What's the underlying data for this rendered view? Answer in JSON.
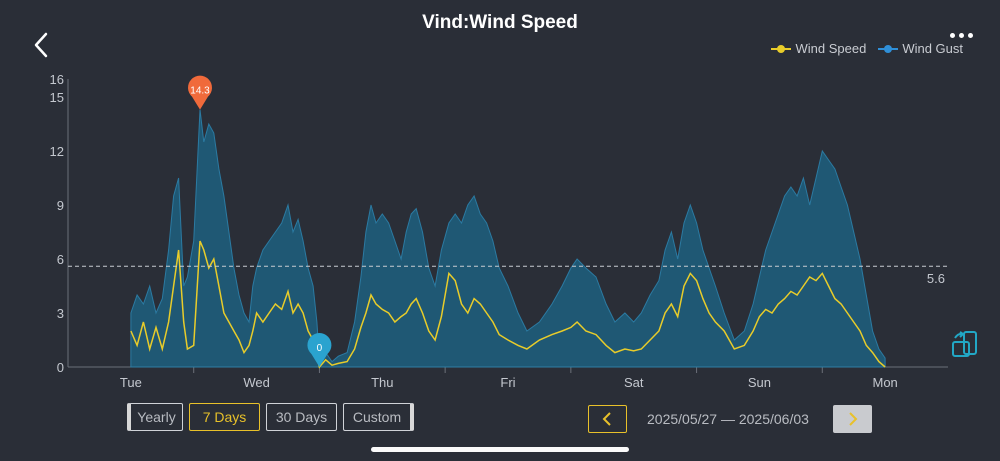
{
  "header": {
    "title": "Vind:Wind Speed"
  },
  "legend": [
    {
      "name": "Wind Speed",
      "color": "#e8cc2a"
    },
    {
      "name": "Wind Gust",
      "color": "#2f8fd8"
    }
  ],
  "icons": {
    "back": "chevron-left-icon",
    "more": "more-dots-icon",
    "rotate": "rotate-screen-icon"
  },
  "chart_data": {
    "type": "area",
    "x_labels": [
      "Tue",
      "Wed",
      "Thu",
      "Fri",
      "Sat",
      "Sun",
      "Mon"
    ],
    "y_ticks": [
      0,
      3,
      6,
      9,
      12,
      15,
      16
    ],
    "ylim": [
      0,
      16
    ],
    "reference_line": {
      "value": 5.6,
      "label": "5.6"
    },
    "markers": [
      {
        "type": "max",
        "label": "14.3",
        "value": 14.3,
        "x": 0.55,
        "color": "#f06a3b"
      },
      {
        "type": "min",
        "label": "0",
        "value": 0,
        "x": 1.5,
        "color": "#2aa3cf"
      }
    ],
    "series": [
      {
        "name": "Wind Gust",
        "color": "#2f8fd8",
        "points": [
          [
            0.0,
            3.0
          ],
          [
            0.05,
            4.0
          ],
          [
            0.1,
            3.5
          ],
          [
            0.15,
            4.5
          ],
          [
            0.2,
            3.0
          ],
          [
            0.25,
            3.8
          ],
          [
            0.3,
            6.5
          ],
          [
            0.34,
            9.5
          ],
          [
            0.38,
            10.5
          ],
          [
            0.42,
            4.5
          ],
          [
            0.45,
            5.0
          ],
          [
            0.5,
            7.0
          ],
          [
            0.55,
            14.3
          ],
          [
            0.58,
            12.5
          ],
          [
            0.62,
            13.5
          ],
          [
            0.66,
            13.0
          ],
          [
            0.7,
            11.0
          ],
          [
            0.74,
            9.5
          ],
          [
            0.78,
            7.5
          ],
          [
            0.82,
            5.5
          ],
          [
            0.86,
            4.0
          ],
          [
            0.9,
            3.0
          ],
          [
            0.94,
            2.5
          ],
          [
            0.97,
            4.5
          ],
          [
            1.0,
            5.5
          ],
          [
            1.05,
            6.5
          ],
          [
            1.1,
            7.0
          ],
          [
            1.15,
            7.5
          ],
          [
            1.2,
            8.0
          ],
          [
            1.25,
            9.0
          ],
          [
            1.29,
            7.5
          ],
          [
            1.33,
            8.2
          ],
          [
            1.37,
            7.0
          ],
          [
            1.41,
            5.5
          ],
          [
            1.45,
            4.5
          ],
          [
            1.48,
            2.5
          ],
          [
            1.5,
            0.4
          ],
          [
            1.55,
            0.8
          ],
          [
            1.6,
            0.3
          ],
          [
            1.65,
            0.6
          ],
          [
            1.72,
            0.8
          ],
          [
            1.78,
            2.5
          ],
          [
            1.83,
            5.0
          ],
          [
            1.87,
            7.5
          ],
          [
            1.91,
            9.0
          ],
          [
            1.95,
            8.0
          ],
          [
            2.0,
            8.5
          ],
          [
            2.05,
            8.0
          ],
          [
            2.1,
            7.0
          ],
          [
            2.15,
            6.0
          ],
          [
            2.19,
            7.5
          ],
          [
            2.23,
            8.5
          ],
          [
            2.27,
            8.8
          ],
          [
            2.32,
            7.5
          ],
          [
            2.37,
            5.5
          ],
          [
            2.42,
            4.5
          ],
          [
            2.47,
            6.5
          ],
          [
            2.53,
            8.0
          ],
          [
            2.58,
            8.5
          ],
          [
            2.63,
            8.0
          ],
          [
            2.68,
            9.0
          ],
          [
            2.73,
            9.5
          ],
          [
            2.78,
            8.5
          ],
          [
            2.83,
            8.0
          ],
          [
            2.88,
            7.0
          ],
          [
            2.93,
            5.5
          ],
          [
            3.0,
            4.5
          ],
          [
            3.08,
            3.0
          ],
          [
            3.15,
            2.0
          ],
          [
            3.25,
            2.5
          ],
          [
            3.35,
            3.5
          ],
          [
            3.43,
            4.5
          ],
          [
            3.5,
            5.5
          ],
          [
            3.55,
            6.0
          ],
          [
            3.62,
            5.5
          ],
          [
            3.7,
            5.0
          ],
          [
            3.78,
            3.5
          ],
          [
            3.85,
            2.5
          ],
          [
            3.93,
            3.0
          ],
          [
            4.0,
            2.5
          ],
          [
            4.06,
            3.0
          ],
          [
            4.13,
            4.0
          ],
          [
            4.2,
            4.8
          ],
          [
            4.25,
            6.5
          ],
          [
            4.3,
            7.5
          ],
          [
            4.35,
            6.0
          ],
          [
            4.4,
            8.0
          ],
          [
            4.45,
            9.0
          ],
          [
            4.5,
            8.0
          ],
          [
            4.55,
            6.5
          ],
          [
            4.6,
            5.5
          ],
          [
            4.65,
            4.5
          ],
          [
            4.72,
            3.0
          ],
          [
            4.8,
            1.5
          ],
          [
            4.88,
            2.0
          ],
          [
            4.95,
            3.5
          ],
          [
            5.0,
            5.0
          ],
          [
            5.05,
            6.5
          ],
          [
            5.1,
            7.5
          ],
          [
            5.15,
            8.5
          ],
          [
            5.2,
            9.5
          ],
          [
            5.25,
            10.0
          ],
          [
            5.3,
            9.5
          ],
          [
            5.35,
            10.5
          ],
          [
            5.4,
            9.0
          ],
          [
            5.45,
            10.5
          ],
          [
            5.5,
            12.0
          ],
          [
            5.55,
            11.5
          ],
          [
            5.6,
            11.0
          ],
          [
            5.65,
            10.0
          ],
          [
            5.7,
            9.0
          ],
          [
            5.75,
            7.5
          ],
          [
            5.8,
            6.0
          ],
          [
            5.85,
            4.0
          ],
          [
            5.9,
            2.0
          ],
          [
            5.95,
            1.0
          ],
          [
            6.0,
            0.5
          ]
        ]
      },
      {
        "name": "Wind Speed",
        "color": "#e8cc2a",
        "points": [
          [
            0.0,
            2.0
          ],
          [
            0.05,
            1.2
          ],
          [
            0.1,
            2.5
          ],
          [
            0.15,
            1.0
          ],
          [
            0.2,
            2.2
          ],
          [
            0.25,
            1.0
          ],
          [
            0.3,
            2.5
          ],
          [
            0.34,
            4.5
          ],
          [
            0.38,
            6.5
          ],
          [
            0.42,
            2.5
          ],
          [
            0.45,
            1.0
          ],
          [
            0.5,
            1.2
          ],
          [
            0.55,
            7.0
          ],
          [
            0.58,
            6.5
          ],
          [
            0.62,
            5.5
          ],
          [
            0.66,
            6.0
          ],
          [
            0.7,
            4.5
          ],
          [
            0.74,
            3.0
          ],
          [
            0.78,
            2.5
          ],
          [
            0.82,
            2.0
          ],
          [
            0.86,
            1.5
          ],
          [
            0.9,
            0.8
          ],
          [
            0.94,
            1.2
          ],
          [
            0.97,
            2.0
          ],
          [
            1.0,
            3.0
          ],
          [
            1.05,
            2.5
          ],
          [
            1.1,
            3.0
          ],
          [
            1.15,
            3.5
          ],
          [
            1.2,
            3.2
          ],
          [
            1.25,
            4.2
          ],
          [
            1.29,
            3.0
          ],
          [
            1.33,
            3.5
          ],
          [
            1.37,
            3.0
          ],
          [
            1.41,
            2.0
          ],
          [
            1.45,
            1.5
          ],
          [
            1.48,
            0.6
          ],
          [
            1.5,
            0.0
          ],
          [
            1.55,
            0.4
          ],
          [
            1.6,
            0.1
          ],
          [
            1.65,
            0.2
          ],
          [
            1.72,
            0.3
          ],
          [
            1.78,
            1.0
          ],
          [
            1.83,
            2.2
          ],
          [
            1.87,
            3.0
          ],
          [
            1.91,
            4.0
          ],
          [
            1.95,
            3.5
          ],
          [
            2.0,
            3.2
          ],
          [
            2.05,
            3.0
          ],
          [
            2.1,
            2.5
          ],
          [
            2.15,
            2.8
          ],
          [
            2.19,
            3.0
          ],
          [
            2.23,
            3.5
          ],
          [
            2.27,
            3.8
          ],
          [
            2.32,
            3.0
          ],
          [
            2.37,
            2.0
          ],
          [
            2.42,
            1.5
          ],
          [
            2.47,
            2.8
          ],
          [
            2.53,
            5.2
          ],
          [
            2.58,
            4.8
          ],
          [
            2.63,
            3.5
          ],
          [
            2.68,
            3.0
          ],
          [
            2.73,
            3.8
          ],
          [
            2.78,
            3.5
          ],
          [
            2.83,
            3.0
          ],
          [
            2.88,
            2.5
          ],
          [
            2.93,
            1.8
          ],
          [
            3.0,
            1.5
          ],
          [
            3.08,
            1.2
          ],
          [
            3.15,
            1.0
          ],
          [
            3.25,
            1.5
          ],
          [
            3.35,
            1.8
          ],
          [
            3.43,
            2.0
          ],
          [
            3.5,
            2.2
          ],
          [
            3.55,
            2.5
          ],
          [
            3.62,
            2.0
          ],
          [
            3.7,
            1.8
          ],
          [
            3.78,
            1.2
          ],
          [
            3.85,
            0.8
          ],
          [
            3.93,
            1.0
          ],
          [
            4.0,
            0.9
          ],
          [
            4.06,
            1.0
          ],
          [
            4.13,
            1.5
          ],
          [
            4.2,
            2.0
          ],
          [
            4.25,
            3.0
          ],
          [
            4.3,
            3.5
          ],
          [
            4.35,
            2.8
          ],
          [
            4.4,
            4.5
          ],
          [
            4.45,
            5.2
          ],
          [
            4.5,
            4.8
          ],
          [
            4.55,
            3.8
          ],
          [
            4.6,
            3.0
          ],
          [
            4.65,
            2.5
          ],
          [
            4.72,
            2.0
          ],
          [
            4.8,
            1.0
          ],
          [
            4.88,
            1.2
          ],
          [
            4.95,
            2.0
          ],
          [
            5.0,
            2.8
          ],
          [
            5.05,
            3.2
          ],
          [
            5.1,
            3.0
          ],
          [
            5.15,
            3.5
          ],
          [
            5.2,
            3.8
          ],
          [
            5.25,
            4.2
          ],
          [
            5.3,
            4.0
          ],
          [
            5.35,
            4.5
          ],
          [
            5.4,
            5.0
          ],
          [
            5.45,
            4.8
          ],
          [
            5.5,
            5.2
          ],
          [
            5.55,
            4.5
          ],
          [
            5.6,
            3.8
          ],
          [
            5.65,
            3.5
          ],
          [
            5.7,
            3.0
          ],
          [
            5.75,
            2.5
          ],
          [
            5.8,
            2.0
          ],
          [
            5.85,
            1.2
          ],
          [
            5.9,
            0.8
          ],
          [
            5.95,
            0.3
          ],
          [
            6.0,
            0.0
          ]
        ]
      }
    ]
  },
  "controls": {
    "range_buttons": [
      "Yearly",
      "7 Days",
      "30 Days",
      "Custom"
    ],
    "active_range": "7 Days",
    "date_range": "2025/05/27 — 2025/06/03"
  }
}
